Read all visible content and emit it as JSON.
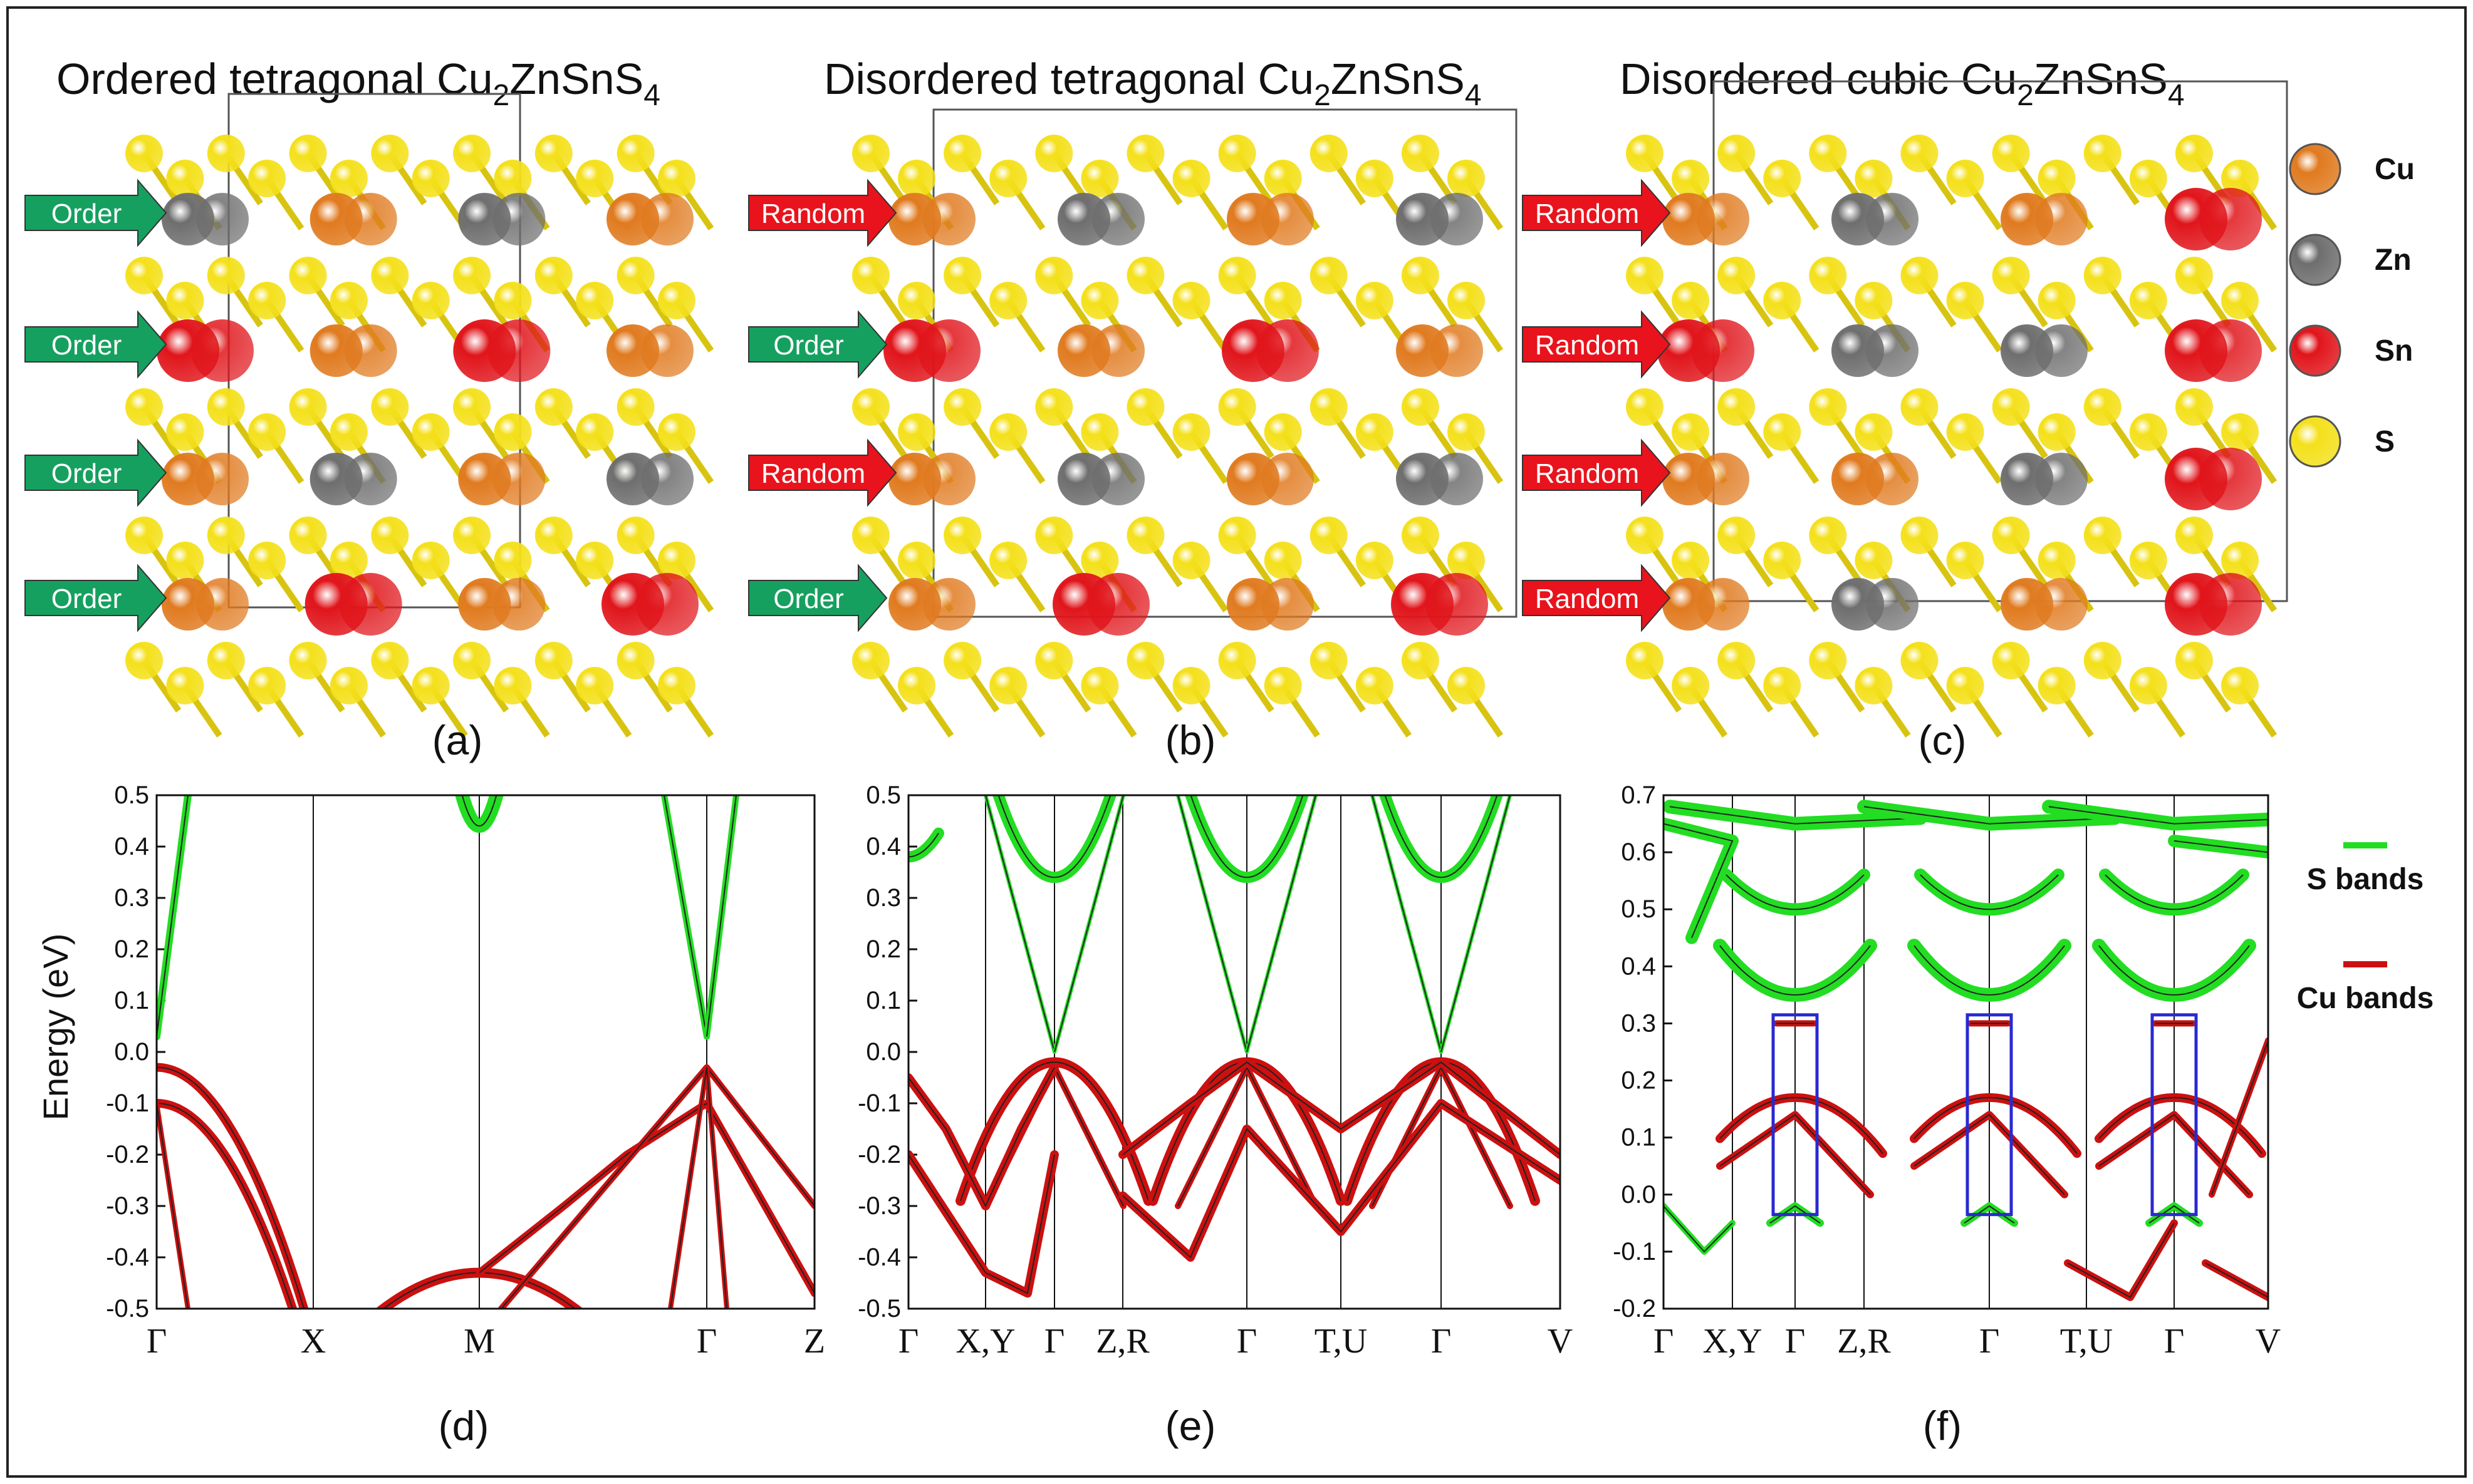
{
  "colors": {
    "cu": "#e07a1f",
    "zn": "#6e6e6e",
    "sn": "#e0151b",
    "s": "#f4e01a",
    "order": "#16a060",
    "random": "#e8131c",
    "s_band": "#22dd22",
    "cu_band": "#cc1010",
    "box": "#2a2ad0"
  },
  "panels_top": [
    {
      "title_main": "Ordered tetragonal Cu",
      "sub1": "2",
      "mid": "ZnSnS",
      "sub2": "4",
      "label": "(a)",
      "arrows": [
        "Order",
        "Order",
        "Order",
        "Order"
      ],
      "arrow_kinds": [
        "order",
        "order",
        "order",
        "order"
      ],
      "rows": [
        [
          "zn",
          "cu",
          "zn",
          "cu"
        ],
        [
          "sn",
          "cu",
          "sn",
          "cu"
        ],
        [
          "cu",
          "zn",
          "cu",
          "zn"
        ],
        [
          "cu",
          "sn",
          "cu",
          "sn"
        ]
      ]
    },
    {
      "title_main": "Disordered tetragonal Cu",
      "sub1": "2",
      "mid": "ZnSnS",
      "sub2": "4",
      "label": "(b)",
      "arrows": [
        "Random",
        "Order",
        "Random",
        "Order"
      ],
      "arrow_kinds": [
        "random",
        "order",
        "random",
        "order"
      ],
      "rows": [
        [
          "cu",
          "zn",
          "cu",
          "zn"
        ],
        [
          "sn",
          "cu",
          "sn",
          "cu"
        ],
        [
          "cu",
          "zn",
          "cu",
          "zn"
        ],
        [
          "cu",
          "sn",
          "cu",
          "sn"
        ]
      ]
    },
    {
      "title_main": "Disordered cubic Cu",
      "sub1": "2",
      "mid": "ZnSnS",
      "sub2": "4",
      "label": "(c)",
      "arrows": [
        "Random",
        "Random",
        "Random",
        "Random"
      ],
      "arrow_kinds": [
        "random",
        "random",
        "random",
        "random"
      ],
      "rows": [
        [
          "cu",
          "zn",
          "cu",
          "sn"
        ],
        [
          "sn",
          "zn",
          "zn",
          "sn"
        ],
        [
          "cu",
          "cu",
          "zn",
          "sn"
        ],
        [
          "cu",
          "zn",
          "cu",
          "sn"
        ]
      ]
    }
  ],
  "legend": [
    {
      "element": "Cu",
      "kind": "cu"
    },
    {
      "element": "Zn",
      "kind": "zn"
    },
    {
      "element": "Sn",
      "kind": "sn"
    },
    {
      "element": "S",
      "kind": "s"
    }
  ],
  "bands_legend": [
    {
      "label": "S bands",
      "kind": "s_band"
    },
    {
      "label": "Cu bands",
      "kind": "cu_band"
    }
  ],
  "chart_data": [
    {
      "type": "line",
      "label": "(d)",
      "ylabel": "Energy (eV)",
      "ylim": [
        -0.5,
        0.5
      ],
      "yticks": [
        "-0.5",
        "-0.4",
        "-0.3",
        "-0.2",
        "-0.1",
        "0.0",
        "0.1",
        "0.2",
        "0.3",
        "0.4",
        "0.5"
      ],
      "kpoints": [
        "Γ",
        "X",
        "M",
        "Γ",
        "Z"
      ]
    },
    {
      "type": "line",
      "label": "(e)",
      "ylabel": "",
      "ylim": [
        -0.5,
        0.5
      ],
      "yticks": [
        "-0.5",
        "-0.4",
        "-0.3",
        "-0.2",
        "-0.1",
        "0.0",
        "0.1",
        "0.2",
        "0.3",
        "0.4",
        "0.5"
      ],
      "kpoints": [
        "Γ",
        "X,Y",
        "Γ",
        "Z,R",
        "Γ",
        "T,U",
        "Γ",
        "V"
      ]
    },
    {
      "type": "line",
      "label": "(f)",
      "ylabel": "",
      "ylim": [
        -0.2,
        0.7
      ],
      "yticks": [
        "-0.2",
        "-0.1",
        "0.0",
        "0.1",
        "0.2",
        "0.3",
        "0.4",
        "0.5",
        "0.6",
        "0.7"
      ],
      "kpoints": [
        "Γ",
        "X,Y",
        "Γ",
        "Z,R",
        "Γ",
        "T,U",
        "Γ",
        "V"
      ]
    }
  ]
}
